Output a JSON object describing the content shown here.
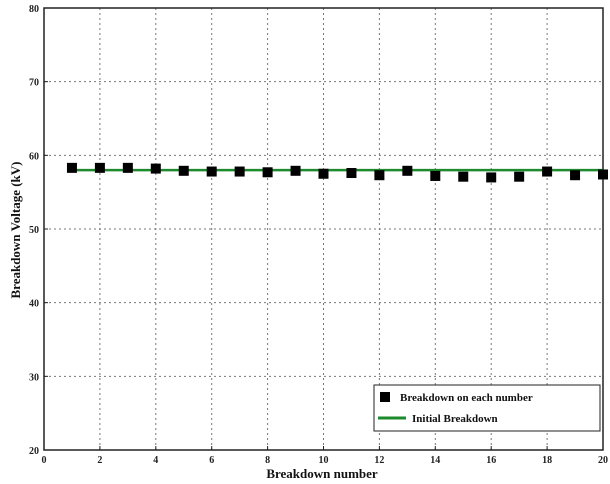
{
  "chart_data": {
    "type": "scatter",
    "xlabel": "Breakdown number",
    "ylabel": "Breakdown Voltage (kV)",
    "xlim": [
      0,
      20
    ],
    "ylim": [
      20,
      80
    ],
    "xticks": [
      0,
      2,
      4,
      6,
      8,
      10,
      12,
      14,
      16,
      18,
      20
    ],
    "yticks": [
      20,
      30,
      40,
      50,
      60,
      70,
      80
    ],
    "grid": true,
    "legend_position": "bottom-right",
    "series": [
      {
        "name": "Breakdown on each number",
        "marker": "square",
        "color": "#000000",
        "x": [
          1,
          2,
          3,
          4,
          5,
          6,
          7,
          8,
          9,
          10,
          11,
          12,
          13,
          14,
          15,
          16,
          17,
          18,
          19,
          20
        ],
        "y": [
          58.3,
          58.3,
          58.3,
          58.2,
          57.9,
          57.8,
          57.8,
          57.7,
          57.9,
          57.5,
          57.6,
          57.3,
          57.9,
          57.2,
          57.1,
          57.0,
          57.1,
          57.8,
          57.3,
          57.4
        ]
      },
      {
        "name": "Initial Breakdown",
        "marker": "line",
        "color": "#1e8a2e",
        "x": [
          1,
          20
        ],
        "y": [
          58.0,
          58.0
        ]
      }
    ]
  }
}
